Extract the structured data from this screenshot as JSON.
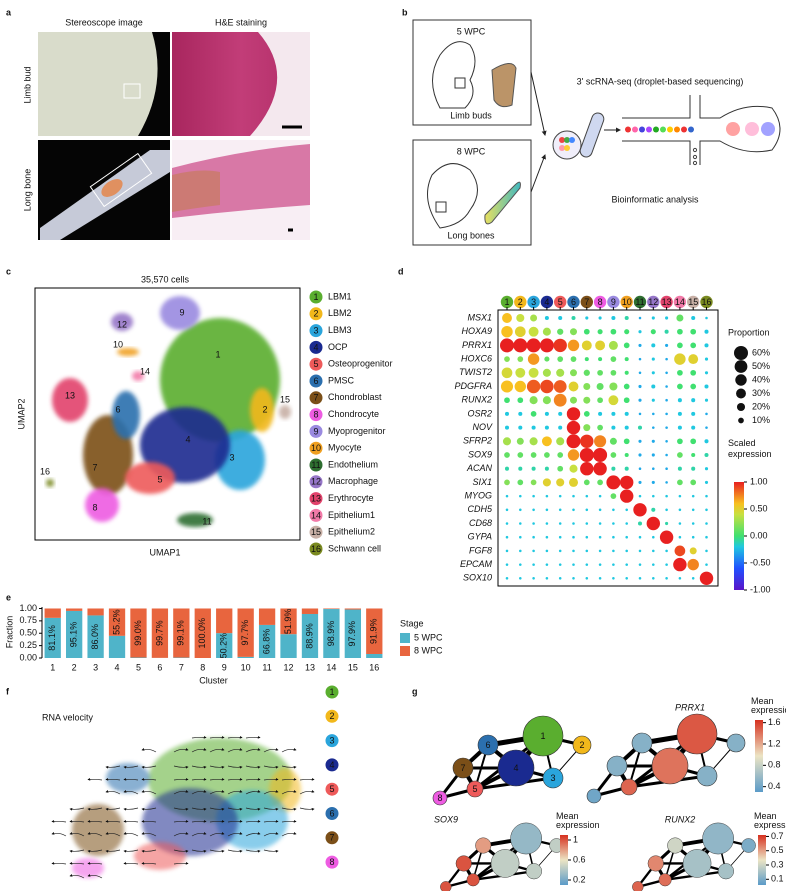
{
  "panel_labels": [
    "a",
    "b",
    "c",
    "d",
    "e",
    "f",
    "g"
  ],
  "clusters": [
    {
      "id": "1",
      "name": "LBM1",
      "color": "#5aae2f"
    },
    {
      "id": "2",
      "name": "LBM2",
      "color": "#f2b81b"
    },
    {
      "id": "3",
      "name": "LBM3",
      "color": "#2aa5dc"
    },
    {
      "id": "4",
      "name": "OCP",
      "color": "#1a2a90"
    },
    {
      "id": "5",
      "name": "Osteoprogenitor",
      "color": "#ee5a5a"
    },
    {
      "id": "6",
      "name": "PMSC",
      "color": "#2b6fae"
    },
    {
      "id": "7",
      "name": "Chondroblast",
      "color": "#7b4f18"
    },
    {
      "id": "8",
      "name": "Chondrocyte",
      "color": "#ee5ce2"
    },
    {
      "id": "9",
      "name": "Myoprogenitor",
      "color": "#9a8ae0"
    },
    {
      "id": "10",
      "name": "Myocyte",
      "color": "#f0a020"
    },
    {
      "id": "11",
      "name": "Endothelium",
      "color": "#2e6e30"
    },
    {
      "id": "12",
      "name": "Macrophage",
      "color": "#9676c8"
    },
    {
      "id": "13",
      "name": "Erythrocyte",
      "color": "#e2436c"
    },
    {
      "id": "14",
      "name": "Epithelium1",
      "color": "#f27aa8"
    },
    {
      "id": "15",
      "name": "Epithelium2",
      "color": "#c8b0a6"
    },
    {
      "id": "16",
      "name": "Schwann cell",
      "color": "#7a8a20"
    }
  ],
  "panel_a": {
    "column_titles": [
      "Stereoscope image",
      "H&E staining"
    ],
    "row_titles": [
      "Limb bud",
      "Long bone"
    ]
  },
  "panel_b": {
    "stages": [
      {
        "stage": "5 WPC",
        "tissue": "Limb buds"
      },
      {
        "stage": "8 WPC",
        "tissue": "Long bones"
      }
    ],
    "method": "3' scRNA-seq (droplet-based sequencing)",
    "analysis": "Bioinformatic analysis"
  },
  "panel_c": {
    "title": "35,570 cells",
    "x_label": "UMAP1",
    "y_label": "UMAP2"
  },
  "panel_d": {
    "type": "dotplot",
    "genes": [
      "MSX1",
      "HOXA9",
      "PRRX1",
      "HOXC6",
      "TWIST2",
      "PDGFRA",
      "RUNX2",
      "OSR2",
      "NOV",
      "SFRP2",
      "SOX9",
      "ACAN",
      "SIX1",
      "MYOG",
      "CDH5",
      "CD68",
      "GYPA",
      "FGF8",
      "EPCAM",
      "SOX10"
    ],
    "proportion": [
      [
        30,
        20,
        15,
        5,
        5,
        5,
        3,
        3,
        5,
        5,
        2,
        3,
        3,
        15,
        5,
        2
      ],
      [
        40,
        35,
        30,
        20,
        12,
        15,
        10,
        8,
        10,
        8,
        3,
        8,
        5,
        10,
        10,
        5
      ],
      [
        60,
        60,
        60,
        60,
        55,
        40,
        30,
        30,
        25,
        10,
        3,
        5,
        3,
        10,
        10,
        5
      ],
      [
        10,
        10,
        40,
        8,
        10,
        10,
        5,
        5,
        10,
        5,
        2,
        3,
        2,
        40,
        30,
        3
      ],
      [
        35,
        30,
        30,
        20,
        20,
        15,
        12,
        10,
        10,
        5,
        2,
        3,
        2,
        10,
        10,
        3
      ],
      [
        45,
        40,
        55,
        55,
        50,
        30,
        15,
        15,
        20,
        10,
        3,
        5,
        2,
        10,
        10,
        5
      ],
      [
        10,
        10,
        20,
        20,
        50,
        15,
        15,
        10,
        30,
        10,
        3,
        3,
        2,
        5,
        5,
        3
      ],
      [
        5,
        5,
        10,
        5,
        5,
        55,
        10,
        5,
        5,
        5,
        2,
        2,
        2,
        5,
        5,
        2
      ],
      [
        5,
        5,
        5,
        5,
        5,
        55,
        15,
        10,
        5,
        5,
        5,
        2,
        2,
        5,
        5,
        2
      ],
      [
        20,
        15,
        20,
        30,
        20,
        60,
        55,
        45,
        15,
        10,
        3,
        3,
        2,
        10,
        10,
        5
      ],
      [
        10,
        10,
        10,
        10,
        10,
        40,
        60,
        60,
        10,
        5,
        3,
        3,
        2,
        10,
        5,
        5
      ],
      [
        5,
        5,
        5,
        5,
        10,
        20,
        55,
        55,
        5,
        5,
        2,
        2,
        2,
        5,
        5,
        3
      ],
      [
        10,
        10,
        10,
        20,
        20,
        25,
        10,
        10,
        60,
        55,
        3,
        3,
        2,
        10,
        10,
        3
      ],
      [
        2,
        2,
        2,
        2,
        2,
        2,
        2,
        2,
        10,
        55,
        2,
        2,
        2,
        2,
        2,
        2
      ],
      [
        2,
        2,
        2,
        2,
        2,
        2,
        2,
        2,
        2,
        2,
        55,
        5,
        2,
        2,
        2,
        2
      ],
      [
        2,
        2,
        2,
        2,
        2,
        2,
        2,
        2,
        2,
        2,
        5,
        55,
        3,
        2,
        2,
        2
      ],
      [
        2,
        2,
        2,
        2,
        2,
        2,
        2,
        2,
        2,
        2,
        2,
        2,
        55,
        2,
        2,
        2
      ],
      [
        2,
        2,
        2,
        2,
        2,
        2,
        2,
        2,
        2,
        2,
        2,
        2,
        2,
        35,
        15,
        2
      ],
      [
        2,
        2,
        2,
        2,
        2,
        2,
        2,
        2,
        2,
        2,
        2,
        2,
        2,
        55,
        40,
        2
      ],
      [
        2,
        2,
        2,
        2,
        2,
        2,
        2,
        2,
        2,
        2,
        2,
        2,
        2,
        2,
        2,
        55
      ]
    ],
    "expression": [
      [
        0.6,
        0.4,
        0.3,
        -0.2,
        -0.2,
        -0.1,
        -0.2,
        -0.2,
        -0.2,
        -0.1,
        -0.3,
        -0.2,
        -0.2,
        0.1,
        -0.2,
        -0.2
      ],
      [
        0.6,
        0.5,
        0.4,
        0.3,
        0.1,
        0.2,
        0,
        0,
        0,
        0,
        -0.2,
        0,
        -0.1,
        0,
        0,
        -0.2
      ],
      [
        1,
        1,
        1,
        1,
        0.95,
        0.7,
        0.5,
        0.5,
        0.3,
        0,
        -0.3,
        -0.2,
        -0.3,
        0,
        0,
        -0.2
      ],
      [
        0.2,
        0.2,
        0.7,
        0.1,
        0.1,
        0.1,
        0,
        0,
        0.1,
        0,
        -0.3,
        -0.2,
        -0.3,
        0.5,
        0.5,
        -0.2
      ],
      [
        0.45,
        0.4,
        0.4,
        0.3,
        0.3,
        0.2,
        0.1,
        0.1,
        0.1,
        0,
        -0.3,
        -0.2,
        -0.3,
        0,
        0,
        -0.2
      ],
      [
        0.6,
        0.6,
        0.85,
        0.9,
        0.85,
        0.5,
        0.2,
        0.1,
        0.2,
        0,
        -0.3,
        -0.2,
        -0.3,
        0,
        0,
        -0.2
      ],
      [
        0,
        0,
        0.2,
        0.2,
        0.75,
        0.2,
        0.2,
        0.1,
        0.45,
        0,
        -0.3,
        -0.2,
        -0.3,
        -0.2,
        -0.2,
        -0.2
      ],
      [
        -0.2,
        -0.2,
        0,
        -0.2,
        -0.2,
        1,
        0,
        -0.2,
        -0.2,
        -0.2,
        -0.3,
        -0.3,
        -0.3,
        -0.2,
        -0.2,
        -0.3
      ],
      [
        -0.2,
        -0.2,
        -0.2,
        -0.2,
        -0.2,
        1,
        0.2,
        0.1,
        -0.2,
        -0.2,
        -0.1,
        -0.3,
        -0.3,
        -0.2,
        -0.2,
        -0.3
      ],
      [
        0.3,
        0.2,
        0.3,
        0.6,
        0.3,
        1,
        0.95,
        0.75,
        0.1,
        0,
        -0.3,
        -0.3,
        -0.3,
        0,
        0,
        -0.2
      ],
      [
        0.1,
        0.1,
        0.1,
        0.1,
        0.1,
        0.7,
        1,
        1,
        0.1,
        0,
        -0.3,
        -0.3,
        -0.3,
        0.1,
        0,
        -0.1
      ],
      [
        -0.1,
        -0.1,
        -0.1,
        -0.1,
        0.1,
        0.4,
        1,
        1,
        -0.1,
        -0.1,
        -0.3,
        -0.3,
        -0.3,
        -0.1,
        -0.1,
        -0.2
      ],
      [
        0.2,
        0.1,
        0.2,
        0.5,
        0.5,
        0.5,
        0.1,
        0.1,
        1,
        1,
        -0.3,
        -0.3,
        -0.3,
        0.1,
        0.1,
        -0.2
      ],
      [
        -0.2,
        -0.2,
        -0.2,
        -0.2,
        -0.2,
        -0.2,
        -0.2,
        -0.2,
        0.1,
        1,
        -0.2,
        -0.2,
        -0.2,
        -0.2,
        -0.2,
        -0.2
      ],
      [
        -0.2,
        -0.2,
        -0.2,
        -0.2,
        -0.2,
        -0.2,
        -0.2,
        -0.2,
        -0.2,
        -0.2,
        1,
        -0.1,
        -0.2,
        -0.2,
        -0.2,
        -0.2
      ],
      [
        -0.2,
        -0.2,
        -0.2,
        -0.2,
        -0.2,
        -0.2,
        -0.2,
        -0.2,
        -0.2,
        -0.2,
        -0.1,
        1,
        -0.1,
        -0.2,
        -0.2,
        -0.2
      ],
      [
        -0.2,
        -0.2,
        -0.2,
        -0.2,
        -0.2,
        -0.2,
        -0.2,
        -0.2,
        -0.2,
        -0.2,
        -0.2,
        -0.2,
        1,
        -0.2,
        -0.2,
        -0.2
      ],
      [
        -0.2,
        -0.2,
        -0.2,
        -0.2,
        -0.2,
        -0.2,
        -0.2,
        -0.2,
        -0.2,
        -0.2,
        -0.2,
        -0.2,
        -0.2,
        0.9,
        0.5,
        -0.2
      ],
      [
        -0.2,
        -0.2,
        -0.2,
        -0.2,
        -0.2,
        -0.2,
        -0.2,
        -0.2,
        -0.2,
        -0.2,
        -0.2,
        -0.2,
        -0.2,
        1,
        0.75,
        -0.2
      ],
      [
        -0.2,
        -0.2,
        -0.2,
        -0.2,
        -0.2,
        -0.2,
        -0.2,
        -0.2,
        -0.2,
        -0.2,
        -0.2,
        -0.2,
        -0.2,
        -0.2,
        -0.2,
        1
      ]
    ],
    "size_legend": {
      "title": "Proportion",
      "ticks": [
        {
          "value": 60,
          "label": "60%"
        },
        {
          "value": 50,
          "label": "50%"
        },
        {
          "value": 40,
          "label": "40%"
        },
        {
          "value": 30,
          "label": "30%"
        },
        {
          "value": 20,
          "label": "20%"
        },
        {
          "value": 10,
          "label": "10%"
        }
      ]
    },
    "color_legend": {
      "title": "Scaled expression",
      "lim": [
        -1,
        1
      ],
      "ticks": [
        {
          "value": 1,
          "label": "1.00"
        },
        {
          "value": 0.5,
          "label": "0.50"
        },
        {
          "value": 0,
          "label": "0.00"
        },
        {
          "value": -0.5,
          "label": "-0.50"
        },
        {
          "value": -1,
          "label": "-1.00"
        }
      ]
    }
  },
  "chart_data": {
    "type": "bar",
    "stacked": true,
    "categories": [
      "1",
      "2",
      "3",
      "4",
      "5",
      "6",
      "7",
      "8",
      "9",
      "10",
      "11",
      "12",
      "13",
      "14",
      "15",
      "16"
    ],
    "series": [
      {
        "name": "5 WPC",
        "color": "#4fb4c9",
        "values": [
          0.811,
          0.951,
          0.86,
          0.448,
          0.01,
          0.003,
          0.009,
          0,
          0.502,
          0.023,
          0.668,
          0.481,
          0.889,
          0.989,
          0.979,
          0.081
        ],
        "value_labels": [
          "81.1%",
          "95.1%",
          "86.0%",
          null,
          null,
          null,
          null,
          null,
          "50.2%",
          null,
          "66.8%",
          null,
          "88.9%",
          "98.9%",
          "97.9%",
          null
        ]
      },
      {
        "name": "8 WPC",
        "color": "#e8653e",
        "values": [
          0.189,
          0.049,
          0.14,
          0.552,
          0.99,
          0.997,
          0.991,
          1.0,
          0.498,
          0.977,
          0.332,
          0.519,
          0.111,
          0.011,
          0.021,
          0.919
        ],
        "value_labels": [
          null,
          null,
          null,
          "55.2%",
          "99.0%",
          "99.7%",
          "99.1%",
          "100.0%",
          null,
          "97.7%",
          null,
          "51.9%",
          null,
          null,
          null,
          "91.9%"
        ]
      }
    ],
    "ylim": [
      0,
      1.03
    ],
    "yticks": [
      {
        "value": 0,
        "label": "0.00"
      },
      {
        "value": 0.25,
        "label": "0.25"
      },
      {
        "value": 0.5,
        "label": "0.50"
      },
      {
        "value": 0.75,
        "label": "0.75"
      },
      {
        "value": 1,
        "label": "1.00"
      }
    ],
    "x_label": "Cluster",
    "y_label": "Fraction",
    "legend_title": "Stage"
  },
  "panel_f": {
    "title": "RNA velocity",
    "legend": [
      "1",
      "2",
      "3",
      "4",
      "5",
      "6",
      "7",
      "8"
    ]
  },
  "panel_g": {
    "colorbar_title": "Mean expression",
    "gene_networks": [
      {
        "gene": "PRRX1",
        "lim": [
          0.3,
          1.65
        ],
        "ticks": [
          0.4,
          0.8,
          1.2,
          1.6
        ],
        "node_values": [
          1.5,
          0.5,
          0.5,
          1.4,
          1.45,
          0.5,
          0.5,
          0.4
        ]
      },
      {
        "gene": "SOX9",
        "lim": [
          0.1,
          1.1
        ],
        "ticks": [
          0.2,
          0.6,
          1
        ],
        "node_values": [
          0.3,
          0.45,
          0.45,
          0.45,
          1.0,
          0.8,
          1.0,
          1.0
        ]
      },
      {
        "gene": "RUNX2",
        "lim": [
          0.02,
          0.72
        ],
        "ticks": [
          0.1,
          0.3,
          0.5,
          0.7
        ],
        "node_values": [
          0.15,
          0.1,
          0.2,
          0.2,
          0.6,
          0.3,
          0.55,
          0.62
        ]
      }
    ]
  }
}
